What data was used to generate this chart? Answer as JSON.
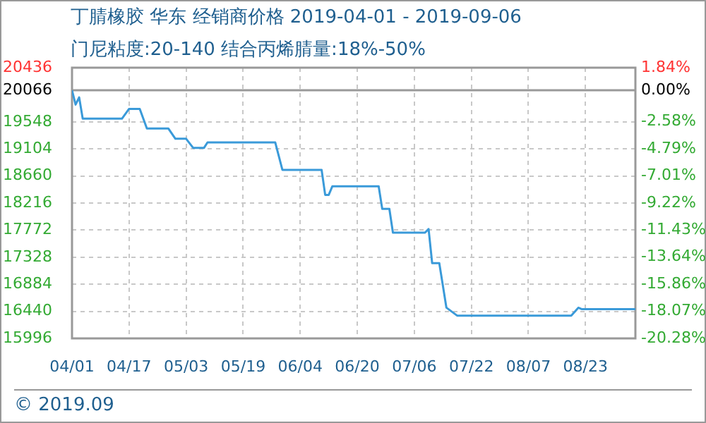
{
  "chart_data": {
    "type": "line",
    "title": "丁腈橡胶 华东 经销商价格 2019-04-01 - 2019-09-06",
    "subtitle": "门尼粘度:20-140 结合丙烯腈量:18%-50%",
    "annotations": [
      "© 2019.09"
    ],
    "x": [
      "2019-04-01",
      "2019-04-02",
      "2019-04-03",
      "2019-04-04",
      "2019-04-15",
      "2019-04-17",
      "2019-04-20",
      "2019-04-22",
      "2019-04-28",
      "2019-04-30",
      "2019-05-03",
      "2019-05-05",
      "2019-05-08",
      "2019-05-09",
      "2019-05-28",
      "2019-05-30",
      "2019-06-10",
      "2019-06-11",
      "2019-06-12",
      "2019-06-13",
      "2019-06-26",
      "2019-06-27",
      "2019-06-29",
      "2019-06-30",
      "2019-07-09",
      "2019-07-10",
      "2019-07-11",
      "2019-07-13",
      "2019-07-15",
      "2019-07-18",
      "2019-08-19",
      "2019-08-21",
      "2019-08-22",
      "2019-09-06"
    ],
    "series": [
      {
        "color": "#3a9ad9",
        "values": [
          20066,
          19830,
          19950,
          19600,
          19600,
          19760,
          19760,
          19440,
          19440,
          19270,
          19270,
          19120,
          19120,
          19210,
          19210,
          18760,
          18760,
          18350,
          18350,
          18490,
          18490,
          18120,
          18120,
          17730,
          17730,
          17790,
          17230,
          17230,
          16500,
          16370,
          16370,
          16500,
          16475,
          16475
        ]
      }
    ],
    "xlim": [
      "2019-04-01",
      "2019-09-06"
    ],
    "xticks": [
      {
        "value": "2019-04-01",
        "label": "04/01"
      },
      {
        "value": "2019-04-17",
        "label": "04/17"
      },
      {
        "value": "2019-05-03",
        "label": "05/03"
      },
      {
        "value": "2019-05-19",
        "label": "05/19"
      },
      {
        "value": "2019-06-04",
        "label": "06/04"
      },
      {
        "value": "2019-06-20",
        "label": "06/20"
      },
      {
        "value": "2019-07-06",
        "label": "07/06"
      },
      {
        "value": "2019-07-22",
        "label": "07/22"
      },
      {
        "value": "2019-08-07",
        "label": "08/07"
      },
      {
        "value": "2019-08-23",
        "label": "08/23"
      }
    ],
    "ylim": [
      15996,
      20436
    ],
    "yticks": [
      15996,
      16440,
      16884,
      17328,
      17772,
      18216,
      18660,
      19104,
      19548,
      20066,
      20436
    ],
    "y2lim": [
      -20.28,
      1.84
    ],
    "y2ticks": [
      {
        "value": -20.28,
        "label": "-20.28%"
      },
      {
        "value": -18.07,
        "label": "-18.07%"
      },
      {
        "value": -15.86,
        "label": "-15.86%"
      },
      {
        "value": -13.64,
        "label": "-13.64%"
      },
      {
        "value": -11.43,
        "label": "-11.43%"
      },
      {
        "value": -9.22,
        "label": "-9.22%"
      },
      {
        "value": -7.01,
        "label": "-7.01%"
      },
      {
        "value": -4.79,
        "label": "-4.79%"
      },
      {
        "value": -2.58,
        "label": "-2.58%"
      },
      {
        "value": 0,
        "label": "0.00%"
      },
      {
        "value": 1.84,
        "label": "1.84%"
      }
    ],
    "grid": true,
    "ref_lines": [
      {
        "axis": "y",
        "value": 20066,
        "color": "#999999"
      }
    ]
  }
}
